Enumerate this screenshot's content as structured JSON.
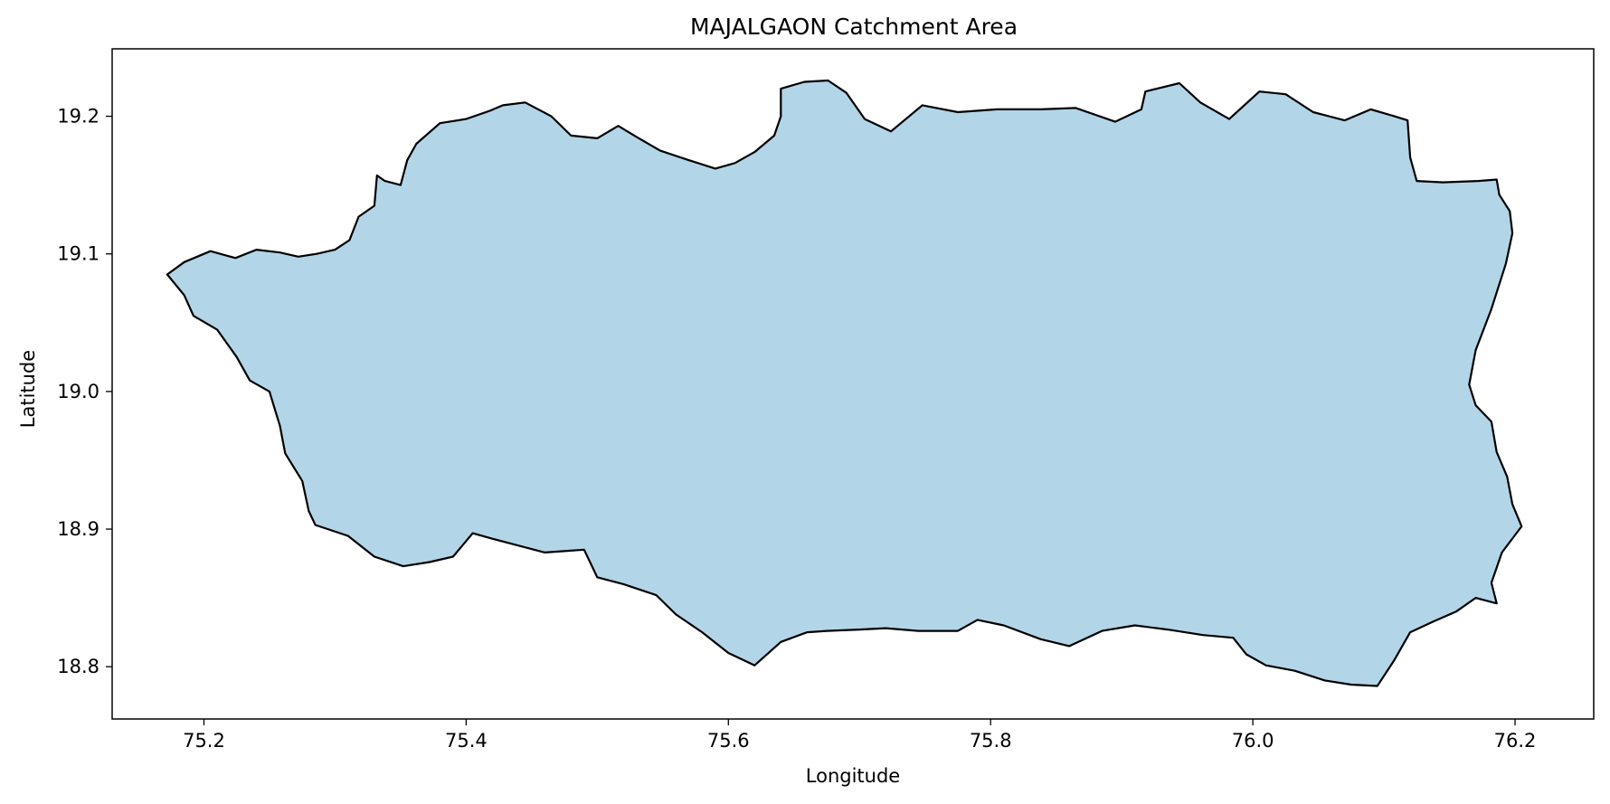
{
  "chart_data": {
    "type": "map",
    "title": "MAJALGAON Catchment Area",
    "xlabel": "Longitude",
    "ylabel": "Latitude",
    "xlim": [
      75.13,
      76.26
    ],
    "ylim": [
      18.762,
      19.249
    ],
    "xticks": [
      75.2,
      75.4,
      75.6,
      75.8,
      76.0,
      76.2
    ],
    "yticks": [
      18.8,
      18.9,
      19.0,
      19.1,
      19.2
    ],
    "xtick_labels": [
      "75.2",
      "75.4",
      "75.6",
      "75.8",
      "76.0",
      "76.2"
    ],
    "ytick_labels": [
      "18.8",
      "18.9",
      "19.0",
      "19.1",
      "19.2"
    ],
    "grid": false,
    "fill_color": "#b3d5e8",
    "edge_color": "#000000",
    "polygon": [
      [
        75.172,
        19.085
      ],
      [
        75.185,
        19.094
      ],
      [
        75.205,
        19.102
      ],
      [
        75.224,
        19.097
      ],
      [
        75.24,
        19.103
      ],
      [
        75.258,
        19.101
      ],
      [
        75.272,
        19.098
      ],
      [
        75.286,
        19.1
      ],
      [
        75.3,
        19.103
      ],
      [
        75.311,
        19.11
      ],
      [
        75.318,
        19.127
      ],
      [
        75.33,
        19.135
      ],
      [
        75.332,
        19.157
      ],
      [
        75.338,
        19.153
      ],
      [
        75.35,
        19.15
      ],
      [
        75.355,
        19.168
      ],
      [
        75.362,
        19.18
      ],
      [
        75.38,
        19.195
      ],
      [
        75.4,
        19.198
      ],
      [
        75.418,
        19.204
      ],
      [
        75.428,
        19.208
      ],
      [
        75.445,
        19.21
      ],
      [
        75.465,
        19.2
      ],
      [
        75.48,
        19.186
      ],
      [
        75.5,
        19.184
      ],
      [
        75.516,
        19.193
      ],
      [
        75.53,
        19.185
      ],
      [
        75.548,
        19.175
      ],
      [
        75.57,
        19.168
      ],
      [
        75.59,
        19.162
      ],
      [
        75.605,
        19.166
      ],
      [
        75.62,
        19.174
      ],
      [
        75.635,
        19.186
      ],
      [
        75.64,
        19.2
      ],
      [
        75.64,
        19.22
      ],
      [
        75.658,
        19.225
      ],
      [
        75.676,
        19.226
      ],
      [
        75.69,
        19.217
      ],
      [
        75.704,
        19.198
      ],
      [
        75.724,
        19.189
      ],
      [
        75.748,
        19.208
      ],
      [
        75.775,
        19.203
      ],
      [
        75.805,
        19.205
      ],
      [
        75.838,
        19.205
      ],
      [
        75.865,
        19.206
      ],
      [
        75.895,
        19.196
      ],
      [
        75.915,
        19.205
      ],
      [
        75.918,
        19.218
      ],
      [
        75.944,
        19.224
      ],
      [
        75.96,
        19.21
      ],
      [
        75.982,
        19.198
      ],
      [
        76.005,
        19.218
      ],
      [
        76.025,
        19.216
      ],
      [
        76.046,
        19.203
      ],
      [
        76.07,
        19.197
      ],
      [
        76.09,
        19.205
      ],
      [
        76.108,
        19.2
      ],
      [
        76.118,
        19.197
      ],
      [
        76.12,
        19.17
      ],
      [
        76.125,
        19.153
      ],
      [
        76.145,
        19.152
      ],
      [
        76.172,
        19.153
      ],
      [
        76.186,
        19.154
      ],
      [
        76.188,
        19.143
      ],
      [
        76.196,
        19.131
      ],
      [
        76.198,
        19.115
      ],
      [
        76.193,
        19.093
      ],
      [
        76.182,
        19.06
      ],
      [
        76.17,
        19.03
      ],
      [
        76.165,
        19.005
      ],
      [
        76.17,
        18.99
      ],
      [
        76.182,
        18.978
      ],
      [
        76.186,
        18.956
      ],
      [
        76.194,
        18.938
      ],
      [
        76.198,
        18.918
      ],
      [
        76.205,
        18.902
      ],
      [
        76.19,
        18.883
      ],
      [
        76.182,
        18.861
      ],
      [
        76.186,
        18.846
      ],
      [
        76.17,
        18.85
      ],
      [
        76.155,
        18.84
      ],
      [
        76.138,
        18.833
      ],
      [
        76.12,
        18.825
      ],
      [
        76.108,
        18.805
      ],
      [
        76.095,
        18.786
      ],
      [
        76.075,
        18.787
      ],
      [
        76.055,
        18.79
      ],
      [
        76.032,
        18.797
      ],
      [
        76.01,
        18.801
      ],
      [
        75.995,
        18.809
      ],
      [
        75.985,
        18.821
      ],
      [
        75.962,
        18.823
      ],
      [
        75.935,
        18.827
      ],
      [
        75.91,
        18.83
      ],
      [
        75.885,
        18.826
      ],
      [
        75.86,
        18.815
      ],
      [
        75.838,
        18.82
      ],
      [
        75.81,
        18.83
      ],
      [
        75.79,
        18.834
      ],
      [
        75.775,
        18.826
      ],
      [
        75.745,
        18.826
      ],
      [
        75.72,
        18.828
      ],
      [
        75.7,
        18.827
      ],
      [
        75.675,
        18.826
      ],
      [
        75.66,
        18.825
      ],
      [
        75.64,
        18.818
      ],
      [
        75.62,
        18.801
      ],
      [
        75.6,
        18.81
      ],
      [
        75.58,
        18.825
      ],
      [
        75.56,
        18.838
      ],
      [
        75.545,
        18.852
      ],
      [
        75.52,
        18.86
      ],
      [
        75.5,
        18.865
      ],
      [
        75.49,
        18.885
      ],
      [
        75.46,
        18.883
      ],
      [
        75.44,
        18.888
      ],
      [
        75.42,
        18.893
      ],
      [
        75.405,
        18.897
      ],
      [
        75.39,
        18.88
      ],
      [
        75.372,
        18.876
      ],
      [
        75.352,
        18.873
      ],
      [
        75.33,
        18.88
      ],
      [
        75.31,
        18.895
      ],
      [
        75.285,
        18.903
      ],
      [
        75.28,
        18.913
      ],
      [
        75.275,
        18.935
      ],
      [
        75.262,
        18.955
      ],
      [
        75.258,
        18.975
      ],
      [
        75.25,
        19.0
      ],
      [
        75.235,
        19.008
      ],
      [
        75.225,
        19.025
      ],
      [
        75.21,
        19.045
      ],
      [
        75.192,
        19.055
      ],
      [
        75.185,
        19.07
      ],
      [
        75.172,
        19.085
      ]
    ]
  }
}
